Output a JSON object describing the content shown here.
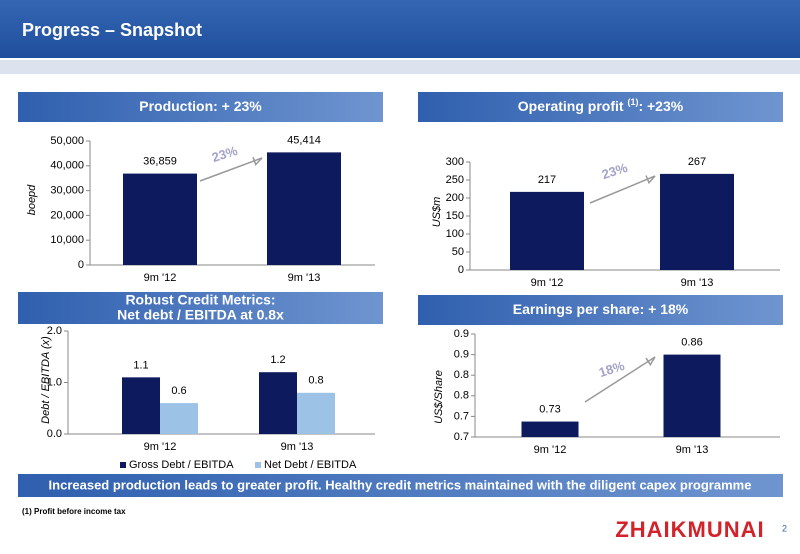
{
  "slide_title": "Progress – Snapshot",
  "chart_data": [
    {
      "type": "bar",
      "title": "Production: + 23%",
      "ylabel": "boepd",
      "categories": [
        "9m '12",
        "9m '13"
      ],
      "values": [
        36859,
        45414
      ],
      "value_labels": [
        "36,859",
        "45,414"
      ],
      "color": "#0d1a5e",
      "ylim": [
        0,
        50000
      ],
      "yticks": [
        0,
        {
          "value": 10000,
          "label": "10,000"
        },
        {
          "value": 20000,
          "label": "20,000"
        },
        {
          "value": 30000,
          "label": "30,000"
        },
        {
          "value": 40000,
          "label": "40,000"
        },
        {
          "value": 50000,
          "label": "50,000"
        }
      ],
      "annotation": "23%"
    },
    {
      "type": "bar",
      "title": "Operating profit ",
      "title_note": "(1)",
      "title_tail": ": +23%",
      "ylabel": "US$m",
      "categories": [
        "9m '12",
        "9m '13"
      ],
      "values": [
        217,
        267
      ],
      "color": "#0d1a5e",
      "ylim": [
        0,
        300
      ],
      "yticks": [
        0,
        50,
        100,
        150,
        200,
        250,
        300
      ],
      "annotation": "23%"
    },
    {
      "type": "grouped-bar",
      "title": [
        "Robust Credit Metrics:",
        "Net debt / EBITDA at 0.8x"
      ],
      "ylabel": "Debt / EBITDA (x)",
      "categories": [
        "9m '12",
        "9m '13"
      ],
      "series": [
        {
          "name": "Gross Debt / EBITDA",
          "color": "#0d1a5e",
          "values": [
            1.1,
            1.2
          ]
        },
        {
          "name": "Net Debt / EBITDA",
          "color": "#9cc3e6",
          "values": [
            0.6,
            0.8
          ]
        }
      ],
      "ylim": [
        0,
        2
      ],
      "yticks": [
        {
          "value": 0,
          "label": "0.0"
        },
        {
          "value": 1,
          "label": "1.0"
        },
        {
          "value": 2,
          "label": "2.0"
        }
      ],
      "legend": "bottom"
    },
    {
      "type": "bar",
      "title": "Earnings per share: + 18%",
      "ylabel": "US$/Share",
      "categories": [
        "9m '12",
        "9m '13"
      ],
      "values": [
        0.73,
        0.86
      ],
      "color": "#0d1a5e",
      "ylim": [
        0.7,
        0.9
      ],
      "yticks": [
        {
          "value": 0.7,
          "label": "0.7"
        },
        {
          "value": 0.74,
          "label": "0.7"
        },
        {
          "value": 0.78,
          "label": "0.8"
        },
        {
          "value": 0.82,
          "label": "0.8"
        },
        {
          "value": 0.86,
          "label": "0.9"
        },
        {
          "value": 0.9,
          "label": "0.9"
        }
      ],
      "annotation": "18%"
    }
  ],
  "summary": "Increased production leads to greater profit. Healthy credit metrics maintained with the diligent capex programme",
  "footnote": "(1) Profit before income tax",
  "logo": "ZHAIKMUNAI",
  "page_number": "2"
}
